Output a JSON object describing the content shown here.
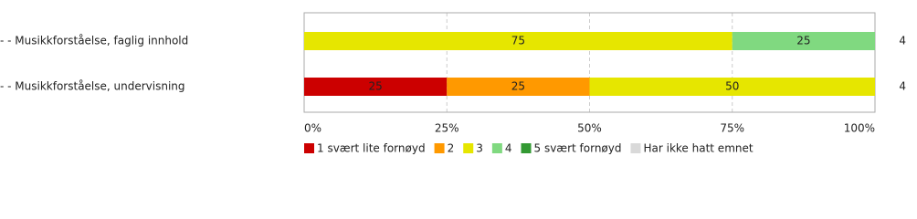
{
  "chart_data": {
    "type": "stacked-barh",
    "categories": [
      "- - Musikkforståelse, faglig innhold",
      "- - Musikkforståelse, undervisning"
    ],
    "counts": [
      4,
      4
    ],
    "series": [
      {
        "name": "1 svært lite fornøyd",
        "color": "#cc0000",
        "values": [
          0,
          25
        ]
      },
      {
        "name": "2",
        "color": "#ff9900",
        "values": [
          0,
          25
        ]
      },
      {
        "name": "3",
        "color": "#e6e600",
        "values": [
          75,
          50
        ]
      },
      {
        "name": "4",
        "color": "#80d980",
        "values": [
          25,
          0
        ]
      },
      {
        "name": "5 svært fornøyd",
        "color": "#339933",
        "values": [
          0,
          0
        ]
      },
      {
        "name": "Har ikke hatt emnet",
        "color": "#d9d9d9",
        "values": [
          0,
          0
        ]
      }
    ],
    "xlim": [
      0,
      100
    ],
    "xticks": [
      {
        "value": 0,
        "label": "0%"
      },
      {
        "value": 25,
        "label": "25%"
      },
      {
        "value": 50,
        "label": "50%"
      },
      {
        "value": 75,
        "label": "75%"
      },
      {
        "value": 100,
        "label": "100%"
      }
    ],
    "grid": true
  }
}
